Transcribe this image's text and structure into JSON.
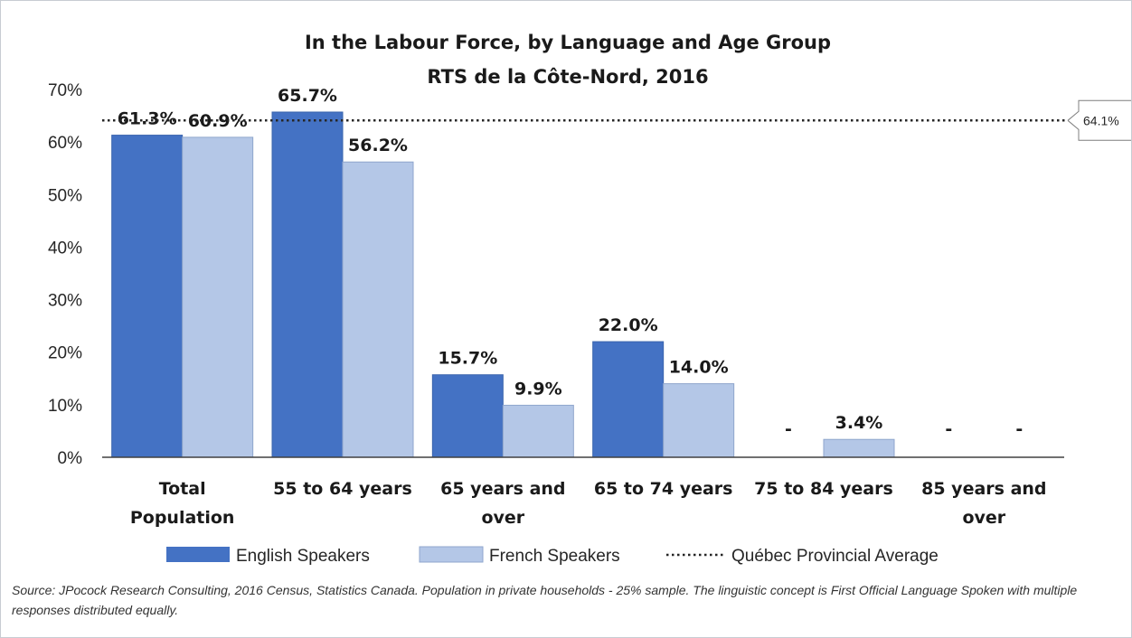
{
  "chart_data": {
    "type": "bar",
    "title": "In the Labour Force, by Language and Age Group",
    "subtitle": "RTS de la Côte-Nord, 2016",
    "categories": [
      [
        "Total",
        "Population"
      ],
      [
        "55 to 64 years"
      ],
      [
        "65 years and",
        "over"
      ],
      [
        "65 to 74 years"
      ],
      [
        "75 to 84 years"
      ],
      [
        "85 years and",
        "over"
      ]
    ],
    "series": [
      {
        "name": "English Speakers",
        "color": "#4472c4",
        "values": [
          61.3,
          65.7,
          15.7,
          22.0,
          null,
          null
        ],
        "labels": [
          "61.3%",
          "65.7%",
          "15.7%",
          "22.0%",
          "-",
          "-"
        ]
      },
      {
        "name": "French Speakers",
        "color": "#b4c7e7",
        "values": [
          60.9,
          56.2,
          9.9,
          14.0,
          3.4,
          null
        ],
        "labels": [
          "60.9%",
          "56.2%",
          "9.9%",
          "14.0%",
          "3.4%",
          "-"
        ]
      }
    ],
    "reference_line": {
      "name": "Québec Provincial Average",
      "value": 64.1,
      "label": "64.1%",
      "style": "dotted"
    },
    "y_axis": {
      "ticks": [
        0,
        10,
        20,
        30,
        40,
        50,
        60,
        70
      ],
      "tick_labels": [
        "0%",
        "10%",
        "20%",
        "30%",
        "40%",
        "50%",
        "60%",
        "70%"
      ],
      "ylim": [
        0,
        70
      ]
    },
    "xlabel": "",
    "ylabel": "",
    "grid": false,
    "legend_position": "bottom"
  },
  "source_note": "Source: JPocock Research Consulting, 2016 Census, Statistics Canada. Population in private households - 25% sample. The linguistic concept is First Official Language Spoken with multiple responses distributed equally."
}
